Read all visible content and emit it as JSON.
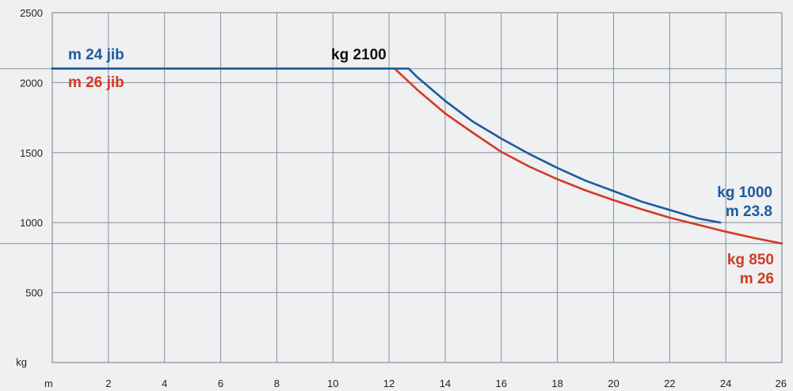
{
  "chart_data": {
    "type": "line",
    "title": "",
    "xlabel": "m",
    "ylabel": "kg",
    "xlim": [
      0,
      26
    ],
    "ylim": [
      0,
      2500
    ],
    "x_ticks": [
      2,
      4,
      6,
      8,
      10,
      12,
      14,
      16,
      18,
      20,
      22,
      24,
      26
    ],
    "y_ticks": [
      500,
      1000,
      1500,
      2000,
      2500
    ],
    "grid": true,
    "colors": {
      "m24": "#1f5a9e",
      "m26": "#d33a24",
      "grid": "#8a8f96",
      "text": "#111111"
    },
    "series": [
      {
        "name": "m 24 jib",
        "color": "#1f5a9e",
        "x": [
          0,
          12.7,
          13,
          14,
          15,
          16,
          17,
          18,
          19,
          20,
          21,
          22,
          23,
          23.8
        ],
        "y": [
          2100,
          2100,
          2040,
          1870,
          1720,
          1600,
          1490,
          1390,
          1300,
          1225,
          1150,
          1090,
          1030,
          1000
        ]
      },
      {
        "name": "m 26 jib",
        "color": "#d33a24",
        "x": [
          0,
          12.2,
          13,
          14,
          15,
          16,
          17,
          18,
          19,
          20,
          21,
          22,
          23,
          24,
          25,
          26
        ],
        "y": [
          2100,
          2100,
          1950,
          1780,
          1640,
          1505,
          1400,
          1310,
          1230,
          1160,
          1095,
          1035,
          985,
          935,
          890,
          850
        ]
      }
    ],
    "annotations": {
      "m24_name": "m 24 jib",
      "m26_name": "m 26 jib",
      "top_label": "kg 2100",
      "m24_end_kg": "kg 1000",
      "m24_end_m": "m 23.8",
      "m26_end_kg": "kg 850",
      "m26_end_m": "m 26"
    },
    "reference_lines": [
      850,
      2100
    ]
  }
}
